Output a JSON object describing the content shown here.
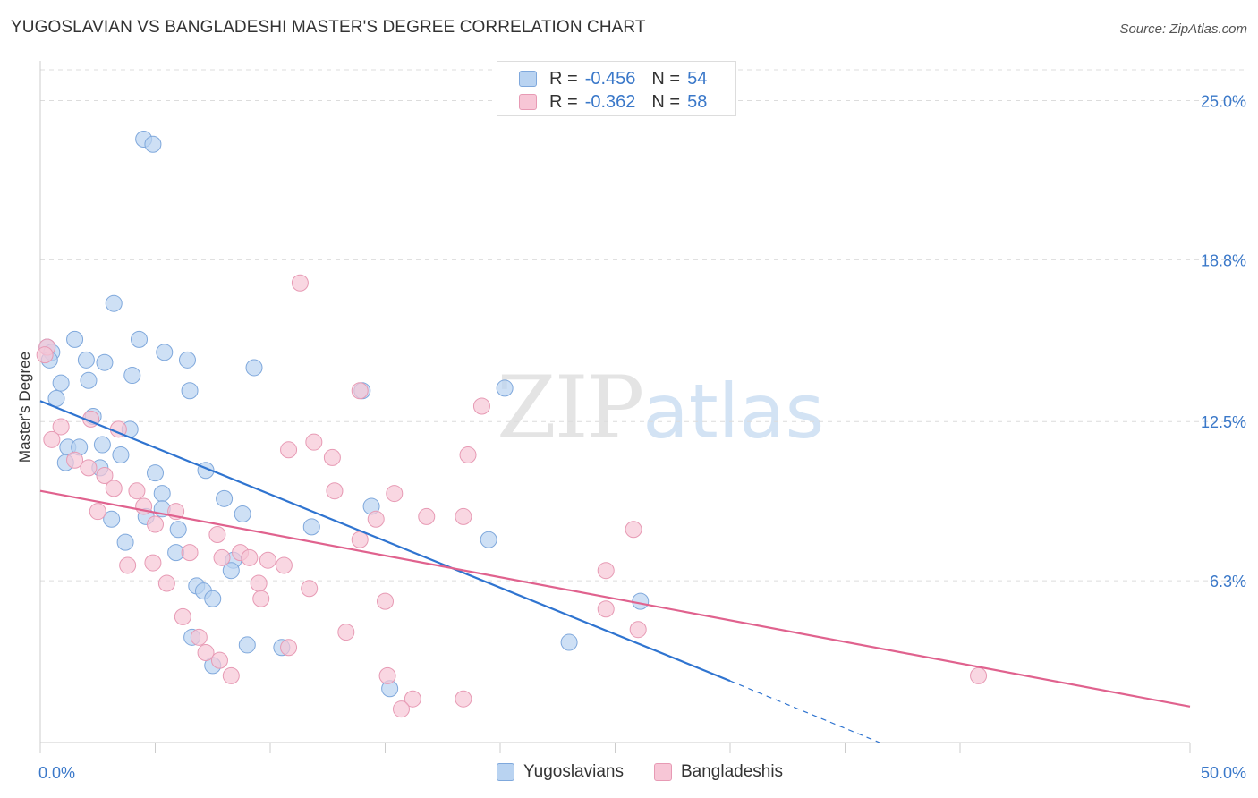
{
  "header": {
    "title": "YUGOSLAVIAN VS BANGLADESHI MASTER'S DEGREE CORRELATION CHART",
    "source": "Source: ZipAtlas.com"
  },
  "watermark": {
    "zip": "ZIP",
    "atlas": "atlas"
  },
  "legend": {
    "r_label": "R =",
    "n_label": "N =",
    "rows": [
      {
        "r": "-0.456",
        "n": "54"
      },
      {
        "r": "-0.362",
        "n": "58"
      }
    ]
  },
  "bottom_legend": [
    "Yugoslavians",
    "Bangladeshis"
  ],
  "colors": {
    "blue_fill": "#b9d3f1",
    "blue_stroke": "#7fa8dc",
    "blue_line": "#2f74d0",
    "pink_fill": "#f7c6d6",
    "pink_stroke": "#e79ab4",
    "pink_line": "#e0628e",
    "axis_text": "#3a78c9",
    "grid": "#dcdcdc"
  },
  "chart_data": {
    "type": "scatter",
    "title": "YUGOSLAVIAN VS BANGLADESHI MASTER'S DEGREE CORRELATION CHART",
    "xlabel": "",
    "ylabel": "Master's Degree",
    "xlim": [
      0,
      50
    ],
    "ylim": [
      0,
      26.2
    ],
    "x_tick_labels": [
      "0.0%",
      "50.0%"
    ],
    "y_ticks": [
      6.3,
      12.5,
      18.8,
      25.0
    ],
    "y_tick_labels": [
      "6.3%",
      "12.5%",
      "18.8%",
      "25.0%"
    ],
    "grid": true,
    "legend_position": "top-center",
    "series": [
      {
        "name": "Yugoslavians",
        "R": -0.456,
        "N": 54,
        "trend": {
          "x": [
            0,
            30.0
          ],
          "y": [
            13.3,
            2.4
          ],
          "dashed_to": [
            36.5,
            0.0
          ]
        },
        "points": [
          [
            4.5,
            23.5
          ],
          [
            4.9,
            23.3
          ],
          [
            0.3,
            15.4
          ],
          [
            0.5,
            15.2
          ],
          [
            0.4,
            14.9
          ],
          [
            1.5,
            15.7
          ],
          [
            3.2,
            17.1
          ],
          [
            4.3,
            15.7
          ],
          [
            5.4,
            15.2
          ],
          [
            6.4,
            14.9
          ],
          [
            9.3,
            14.6
          ],
          [
            2.0,
            14.9
          ],
          [
            2.8,
            14.8
          ],
          [
            4.0,
            14.3
          ],
          [
            0.9,
            14.0
          ],
          [
            2.1,
            14.1
          ],
          [
            6.5,
            13.7
          ],
          [
            14.0,
            13.7
          ],
          [
            20.2,
            13.8
          ],
          [
            0.7,
            13.4
          ],
          [
            2.3,
            12.7
          ],
          [
            3.9,
            12.2
          ],
          [
            1.2,
            11.5
          ],
          [
            1.7,
            11.5
          ],
          [
            2.7,
            11.6
          ],
          [
            3.5,
            11.2
          ],
          [
            1.1,
            10.9
          ],
          [
            2.6,
            10.7
          ],
          [
            5.0,
            10.5
          ],
          [
            7.2,
            10.6
          ],
          [
            5.3,
            9.7
          ],
          [
            8.0,
            9.5
          ],
          [
            5.3,
            9.1
          ],
          [
            8.8,
            8.9
          ],
          [
            14.4,
            9.2
          ],
          [
            3.1,
            8.7
          ],
          [
            4.6,
            8.8
          ],
          [
            11.8,
            8.4
          ],
          [
            6.0,
            8.3
          ],
          [
            19.5,
            7.9
          ],
          [
            3.7,
            7.8
          ],
          [
            5.9,
            7.4
          ],
          [
            8.4,
            7.1
          ],
          [
            8.3,
            6.7
          ],
          [
            6.8,
            6.1
          ],
          [
            7.1,
            5.9
          ],
          [
            7.5,
            5.6
          ],
          [
            26.1,
            5.5
          ],
          [
            6.6,
            4.1
          ],
          [
            9.0,
            3.8
          ],
          [
            10.5,
            3.7
          ],
          [
            7.5,
            3.0
          ],
          [
            23.0,
            3.9
          ],
          [
            15.2,
            2.1
          ]
        ]
      },
      {
        "name": "Bangladeshis",
        "R": -0.362,
        "N": 58,
        "trend": {
          "x": [
            0,
            50
          ],
          "y": [
            9.8,
            1.4
          ]
        },
        "points": [
          [
            0.3,
            15.4
          ],
          [
            0.2,
            15.1
          ],
          [
            11.3,
            17.9
          ],
          [
            13.9,
            13.7
          ],
          [
            19.2,
            13.1
          ],
          [
            0.9,
            12.3
          ],
          [
            2.2,
            12.6
          ],
          [
            3.4,
            12.2
          ],
          [
            0.5,
            11.8
          ],
          [
            1.5,
            11.0
          ],
          [
            10.8,
            11.4
          ],
          [
            11.9,
            11.7
          ],
          [
            12.7,
            11.1
          ],
          [
            18.6,
            11.2
          ],
          [
            2.1,
            10.7
          ],
          [
            2.8,
            10.4
          ],
          [
            3.2,
            9.9
          ],
          [
            4.2,
            9.8
          ],
          [
            12.8,
            9.8
          ],
          [
            15.4,
            9.7
          ],
          [
            2.5,
            9.0
          ],
          [
            4.5,
            9.2
          ],
          [
            5.9,
            9.0
          ],
          [
            14.6,
            8.7
          ],
          [
            16.8,
            8.8
          ],
          [
            18.4,
            8.8
          ],
          [
            25.8,
            8.3
          ],
          [
            5.0,
            8.5
          ],
          [
            7.7,
            8.1
          ],
          [
            13.9,
            7.9
          ],
          [
            6.5,
            7.4
          ],
          [
            8.7,
            7.4
          ],
          [
            7.9,
            7.2
          ],
          [
            9.1,
            7.2
          ],
          [
            9.9,
            7.1
          ],
          [
            10.6,
            6.9
          ],
          [
            3.8,
            6.9
          ],
          [
            4.9,
            7.0
          ],
          [
            24.6,
            6.7
          ],
          [
            5.5,
            6.2
          ],
          [
            9.5,
            6.2
          ],
          [
            11.7,
            6.0
          ],
          [
            9.6,
            5.6
          ],
          [
            15.0,
            5.5
          ],
          [
            24.6,
            5.2
          ],
          [
            6.2,
            4.9
          ],
          [
            13.3,
            4.3
          ],
          [
            26.0,
            4.4
          ],
          [
            6.9,
            4.1
          ],
          [
            10.8,
            3.7
          ],
          [
            7.2,
            3.5
          ],
          [
            7.8,
            3.2
          ],
          [
            8.3,
            2.6
          ],
          [
            15.1,
            2.6
          ],
          [
            16.2,
            1.7
          ],
          [
            18.4,
            1.7
          ],
          [
            15.7,
            1.3
          ],
          [
            40.8,
            2.6
          ]
        ]
      }
    ]
  }
}
